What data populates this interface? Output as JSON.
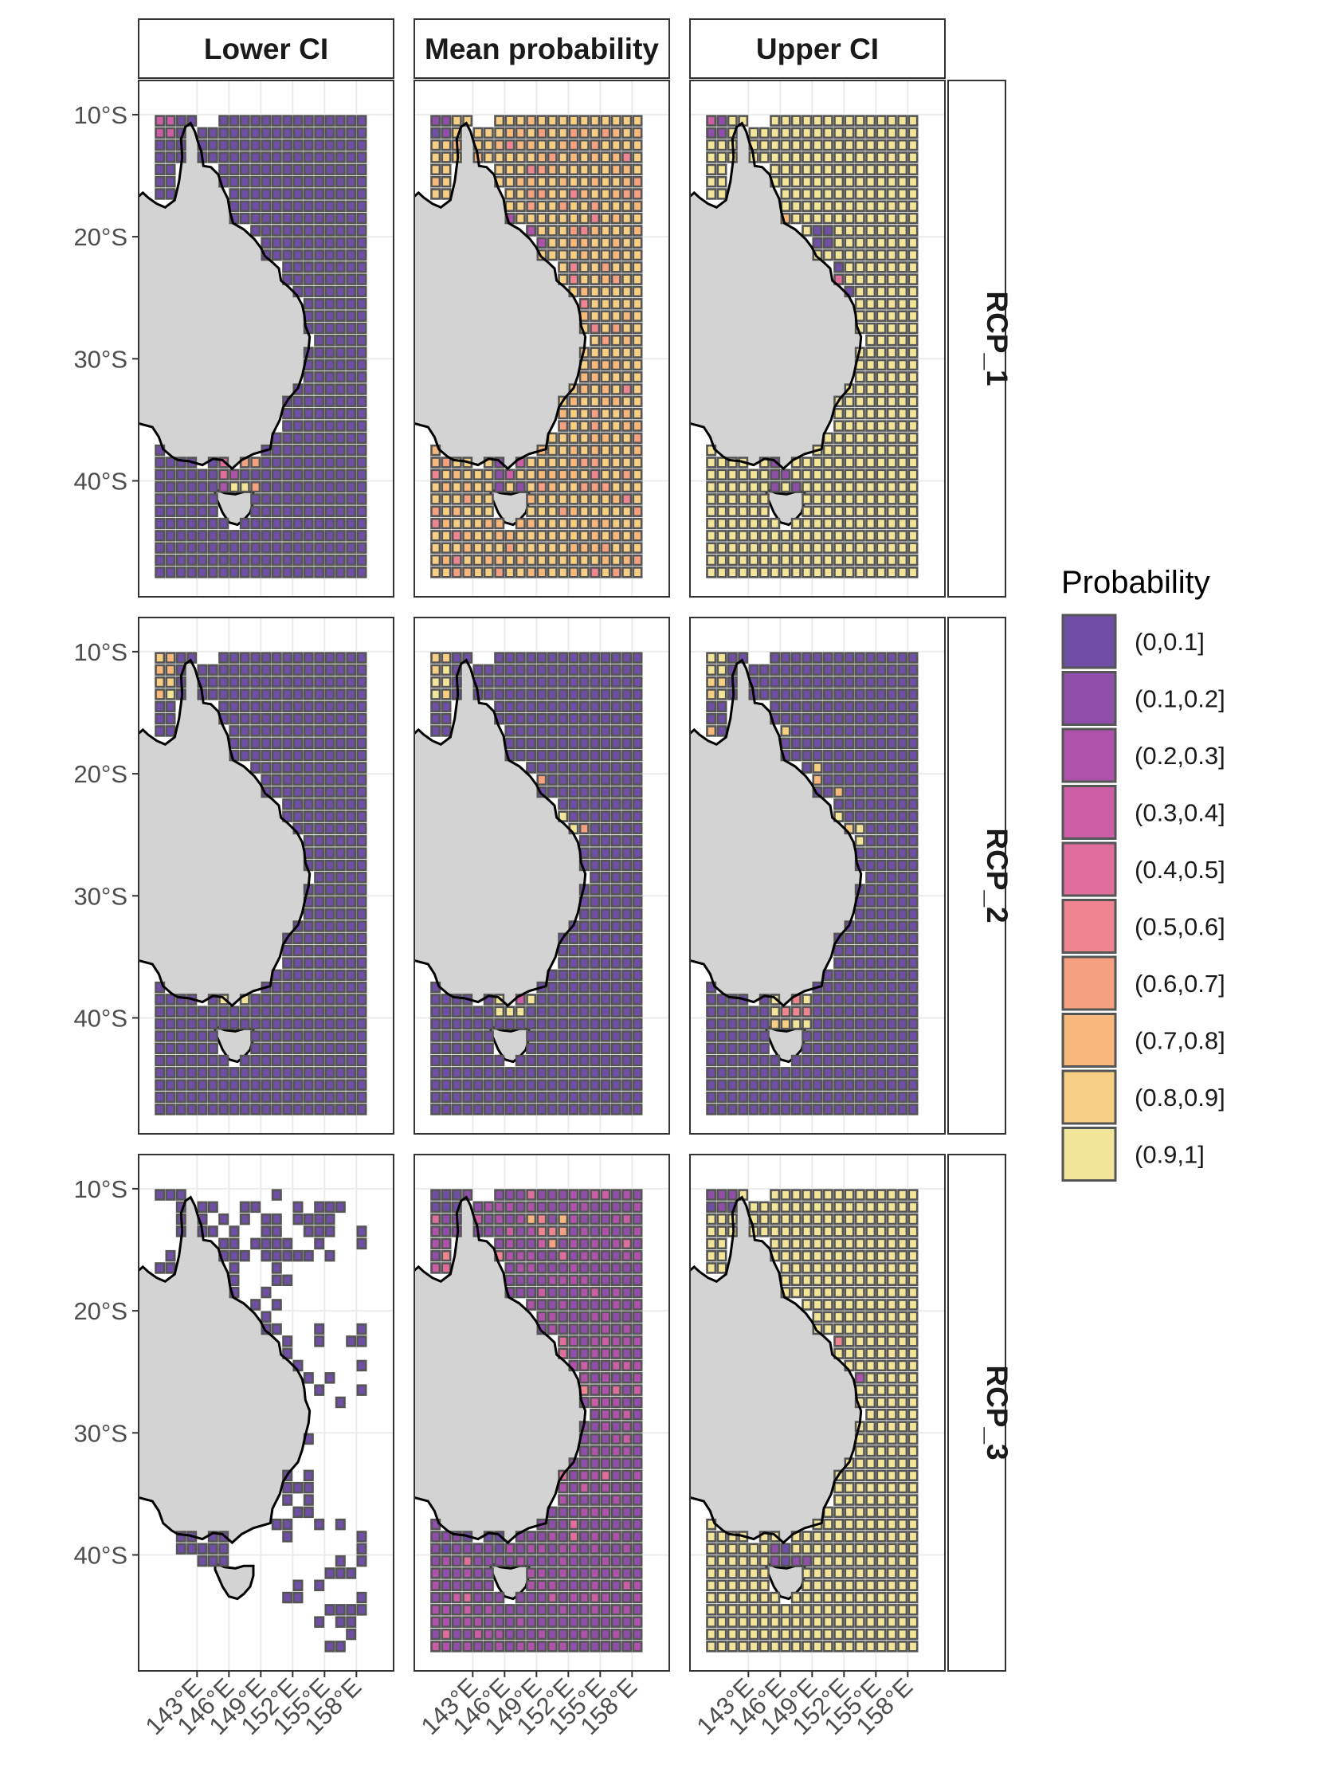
{
  "columns": [
    "Lower CI",
    "Mean probability",
    "Upper CI"
  ],
  "rows": [
    "RCP_1",
    "RCP_2",
    "RCP_3"
  ],
  "y_axis_ticks": [
    "10°S",
    "20°S",
    "30°S",
    "40°S"
  ],
  "x_axis_ticks": [
    "143°E",
    "146°E",
    "149°E",
    "152°E",
    "155°E",
    "158°E"
  ],
  "legend": {
    "title": "Probability",
    "entries": [
      {
        "label": "(0,0.1]",
        "color": "#6f4ea6"
      },
      {
        "label": "(0.1,0.2]",
        "color": "#8f4ea9"
      },
      {
        "label": "(0.2,0.3]",
        "color": "#ae52ab"
      },
      {
        "label": "(0.3,0.4]",
        "color": "#cc5ea6"
      },
      {
        "label": "(0.4,0.5]",
        "color": "#e06e9d"
      },
      {
        "label": "(0.5,0.6]",
        "color": "#ee8590"
      },
      {
        "label": "(0.6,0.7]",
        "color": "#f5a080"
      },
      {
        "label": "(0.7,0.8]",
        "color": "#f8b87c"
      },
      {
        "label": "(0.8,0.9]",
        "color": "#f6cf84"
      },
      {
        "label": "(0.9,1]",
        "color": "#f2e59a"
      }
    ]
  },
  "colors": {
    "land": "#d3d3d3",
    "cell_stroke": "#555555",
    "panel_border": "#333333",
    "grid": "#ebebeb"
  }
}
